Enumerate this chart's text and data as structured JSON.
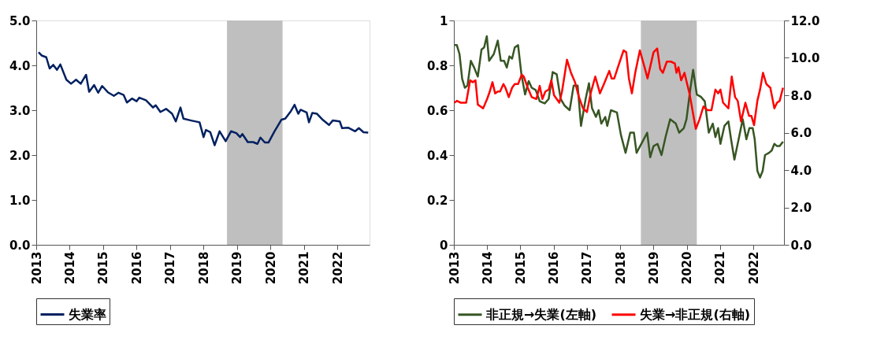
{
  "chart_data": [
    {
      "type": "line",
      "xlim": [
        2013,
        2022.96
      ],
      "xticks": [
        2013,
        2014,
        2015,
        2016,
        2017,
        2018,
        2019,
        2020,
        2021,
        2022
      ],
      "ylim": [
        0,
        5
      ],
      "yticks": [
        {
          "value": 0,
          "label": "0.0"
        },
        {
          "value": 1,
          "label": "1.0"
        },
        {
          "value": 2,
          "label": "2.0"
        },
        {
          "value": 3,
          "label": "3.0"
        },
        {
          "value": 4,
          "label": "4.0"
        },
        {
          "value": 5,
          "label": "5.0"
        }
      ],
      "grid": false,
      "legend": "bottom",
      "bands": [
        {
          "axis": "x",
          "from": 2018.7,
          "to": 2020.36,
          "color": "#bfbfbf"
        }
      ],
      "series": [
        {
          "name": "失業率",
          "color": "#002060",
          "x": [
            2013.07,
            2013.16,
            2013.3,
            2013.4,
            2013.51,
            2013.62,
            2013.72,
            2013.9,
            2014.04,
            2014.19,
            2014.33,
            2014.49,
            2014.58,
            2014.73,
            2014.85,
            2014.97,
            2015.14,
            2015.32,
            2015.46,
            2015.61,
            2015.71,
            2015.86,
            2016.0,
            2016.08,
            2016.28,
            2016.49,
            2016.57,
            2016.71,
            2016.88,
            2017.06,
            2017.17,
            2017.31,
            2017.4,
            2017.63,
            2017.88,
            2018.0,
            2018.07,
            2018.2,
            2018.33,
            2018.48,
            2018.66,
            2018.82,
            2018.98,
            2019.09,
            2019.16,
            2019.32,
            2019.48,
            2019.61,
            2019.7,
            2019.83,
            2019.94,
            2020.12,
            2020.33,
            2020.44,
            2020.61,
            2020.72,
            2020.83,
            2020.9,
            2021.08,
            2021.15,
            2021.25,
            2021.39,
            2021.57,
            2021.75,
            2021.86,
            2022.07,
            2022.14,
            2022.32,
            2022.53,
            2022.64,
            2022.78,
            2022.92
          ],
          "values": [
            4.29,
            4.22,
            4.18,
            3.93,
            4.01,
            3.9,
            4.02,
            3.68,
            3.59,
            3.68,
            3.59,
            3.79,
            3.41,
            3.56,
            3.39,
            3.54,
            3.4,
            3.32,
            3.39,
            3.34,
            3.17,
            3.26,
            3.2,
            3.28,
            3.22,
            3.06,
            3.11,
            2.96,
            3.03,
            2.92,
            2.75,
            3.06,
            2.81,
            2.77,
            2.73,
            2.4,
            2.56,
            2.51,
            2.22,
            2.53,
            2.31,
            2.53,
            2.49,
            2.4,
            2.47,
            2.29,
            2.29,
            2.25,
            2.39,
            2.28,
            2.28,
            2.53,
            2.79,
            2.81,
            2.98,
            3.12,
            2.92,
            3.01,
            2.95,
            2.73,
            2.94,
            2.92,
            2.78,
            2.67,
            2.77,
            2.75,
            2.6,
            2.61,
            2.53,
            2.6,
            2.51,
            2.5
          ]
        }
      ]
    },
    {
      "type": "line",
      "xlim": [
        2013,
        2022.92
      ],
      "xticks": [
        2013,
        2014,
        2015,
        2016,
        2017,
        2018,
        2019,
        2020,
        2021,
        2022
      ],
      "ylim": [
        0,
        1
      ],
      "yticks": [
        0,
        0.2,
        0.4,
        0.6,
        0.8,
        1
      ],
      "y2lim": [
        0,
        12
      ],
      "y2ticks": [
        {
          "value": 0,
          "label": "0.0"
        },
        {
          "value": 2,
          "label": "2.0"
        },
        {
          "value": 4,
          "label": "4.0"
        },
        {
          "value": 6,
          "label": "6.0"
        },
        {
          "value": 8,
          "label": "8.0"
        },
        {
          "value": 10,
          "label": "10.0"
        },
        {
          "value": 12,
          "label": "12.0"
        }
      ],
      "grid": false,
      "legend": "bottom",
      "bands": [
        {
          "axis": "x",
          "from": 2018.62,
          "to": 2020.3,
          "color": "#bfbfbf"
        }
      ],
      "series": [
        {
          "name": "非正規→失業(左軸)",
          "color": "#375623",
          "x": [
            2013.02,
            2013.09,
            2013.17,
            2013.25,
            2013.33,
            2013.41,
            2013.51,
            2013.61,
            2013.72,
            2013.83,
            2013.91,
            2013.99,
            2014.06,
            2014.2,
            2014.32,
            2014.41,
            2014.51,
            2014.59,
            2014.67,
            2014.75,
            2014.83,
            2014.93,
            2015.03,
            2015.14,
            2015.25,
            2015.34,
            2015.46,
            2015.58,
            2015.73,
            2015.85,
            2015.97,
            2016.09,
            2016.21,
            2016.33,
            2016.48,
            2016.6,
            2016.72,
            2016.82,
            2016.96,
            2017.06,
            2017.15,
            2017.27,
            2017.35,
            2017.43,
            2017.55,
            2017.61,
            2017.72,
            2017.9,
            2018.02,
            2018.16,
            2018.3,
            2018.41,
            2018.49,
            2018.67,
            2018.81,
            2018.9,
            2019.0,
            2019.12,
            2019.24,
            2019.36,
            2019.5,
            2019.67,
            2019.77,
            2019.91,
            2019.99,
            2020.11,
            2020.19,
            2020.3,
            2020.42,
            2020.54,
            2020.66,
            2020.78,
            2020.86,
            2020.94,
            2021.01,
            2021.13,
            2021.25,
            2021.33,
            2021.43,
            2021.57,
            2021.68,
            2021.79,
            2021.88,
            2021.98,
            2022.04,
            2022.12,
            2022.2,
            2022.28,
            2022.35,
            2022.47,
            2022.55,
            2022.63,
            2022.71,
            2022.79,
            2022.89
          ],
          "values": [
            0.89,
            0.89,
            0.85,
            0.74,
            0.7,
            0.71,
            0.82,
            0.79,
            0.75,
            0.87,
            0.88,
            0.93,
            0.82,
            0.85,
            0.91,
            0.82,
            0.82,
            0.79,
            0.84,
            0.83,
            0.88,
            0.89,
            0.76,
            0.67,
            0.73,
            0.7,
            0.69,
            0.64,
            0.63,
            0.65,
            0.77,
            0.76,
            0.65,
            0.62,
            0.6,
            0.71,
            0.71,
            0.53,
            0.65,
            0.72,
            0.61,
            0.57,
            0.6,
            0.54,
            0.57,
            0.53,
            0.6,
            0.59,
            0.49,
            0.41,
            0.5,
            0.5,
            0.41,
            0.46,
            0.5,
            0.39,
            0.44,
            0.45,
            0.4,
            0.48,
            0.56,
            0.54,
            0.5,
            0.52,
            0.56,
            0.7,
            0.78,
            0.67,
            0.66,
            0.64,
            0.5,
            0.54,
            0.48,
            0.52,
            0.45,
            0.53,
            0.55,
            0.47,
            0.38,
            0.48,
            0.56,
            0.47,
            0.52,
            0.52,
            0.47,
            0.33,
            0.3,
            0.33,
            0.4,
            0.41,
            0.42,
            0.45,
            0.44,
            0.44,
            0.46
          ]
        },
        {
          "name": "失業→非正規(右軸)",
          "color": "#ff0000",
          "axis": "y2",
          "x": [
            2013.02,
            2013.09,
            2013.21,
            2013.37,
            2013.43,
            2013.49,
            2013.57,
            2013.65,
            2013.72,
            2013.8,
            2013.88,
            2014.0,
            2014.08,
            2014.16,
            2014.24,
            2014.32,
            2014.39,
            2014.49,
            2014.55,
            2014.65,
            2014.75,
            2014.83,
            2014.93,
            2015.04,
            2015.1,
            2015.22,
            2015.34,
            2015.48,
            2015.58,
            2015.66,
            2015.75,
            2015.85,
            2015.93,
            2016.01,
            2016.09,
            2016.17,
            2016.25,
            2016.4,
            2016.52,
            2016.64,
            2016.76,
            2016.88,
            2017.0,
            2017.11,
            2017.25,
            2017.39,
            2017.51,
            2017.67,
            2017.74,
            2017.82,
            2017.93,
            2018.1,
            2018.18,
            2018.26,
            2018.35,
            2018.45,
            2018.59,
            2018.73,
            2018.82,
            2019.0,
            2019.11,
            2019.2,
            2019.28,
            2019.4,
            2019.52,
            2019.64,
            2019.69,
            2019.75,
            2019.83,
            2019.93,
            2020.01,
            2020.08,
            2020.27,
            2020.38,
            2020.5,
            2020.62,
            2020.74,
            2020.86,
            2020.94,
            2021.01,
            2021.09,
            2021.25,
            2021.35,
            2021.45,
            2021.53,
            2021.63,
            2021.76,
            2021.87,
            2021.94,
            2022.02,
            2022.12,
            2022.2,
            2022.29,
            2022.39,
            2022.51,
            2022.63,
            2022.71,
            2022.79,
            2022.89
          ],
          "values": [
            7.6,
            7.7,
            7.6,
            7.6,
            8.2,
            8.8,
            8.7,
            8.8,
            7.5,
            7.4,
            7.3,
            7.8,
            8.2,
            8.7,
            8.1,
            8.2,
            8.2,
            8.6,
            8.4,
            7.9,
            8.4,
            8.6,
            8.6,
            9.1,
            9.0,
            8.4,
            7.9,
            7.8,
            8.5,
            7.8,
            8.2,
            8.3,
            8.8,
            8.0,
            7.8,
            7.6,
            8.2,
            9.9,
            9.2,
            8.7,
            7.9,
            7.3,
            7.1,
            8.1,
            9.0,
            8.1,
            8.6,
            9.3,
            8.9,
            8.9,
            9.5,
            10.4,
            10.3,
            8.9,
            8.1,
            9.2,
            10.4,
            9.5,
            8.9,
            10.3,
            10.5,
            9.4,
            9.2,
            9.8,
            9.8,
            9.7,
            9.2,
            9.5,
            8.8,
            9.2,
            8.6,
            8.1,
            6.2,
            6.7,
            7.4,
            7.2,
            7.2,
            8.3,
            8.1,
            8.3,
            7.6,
            7.3,
            9.0,
            7.9,
            7.7,
            6.6,
            7.6,
            6.9,
            6.9,
            6.4,
            7.7,
            8.3,
            9.2,
            8.6,
            8.4,
            7.3,
            7.6,
            7.7,
            8.4
          ]
        }
      ]
    }
  ]
}
